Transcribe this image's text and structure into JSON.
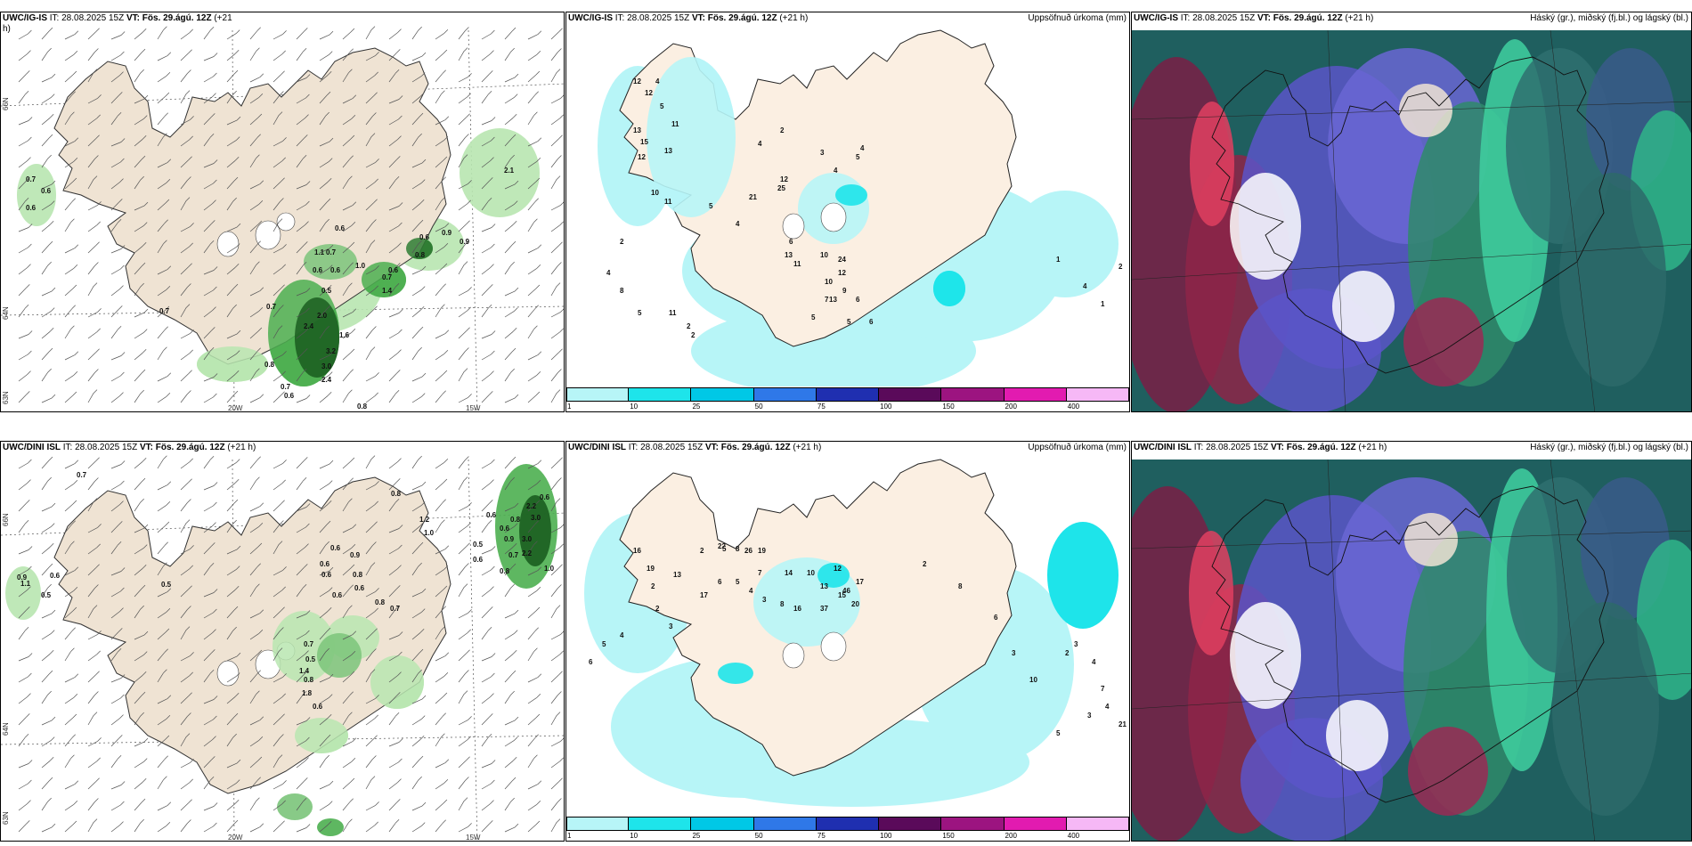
{
  "rows": [
    {
      "left": {
        "model": "UWC/IG-IS",
        "it_label": "IT: 28.08.2025 15Z",
        "vt_label": "VT: Fös. 29.ágú. 12Z",
        "lead": "(+21",
        "lead_cont": "h)"
      },
      "middle": {
        "model": "UWC/IG-IS",
        "it_label": "IT: 28.08.2025 15Z",
        "vt_label": "VT: Fös. 29.ágú. 12Z",
        "lead": "(+21 h)",
        "right_title": "Uppsöfnuð úrkoma (mm)"
      },
      "right": {
        "model": "UWC/IG-IS",
        "it_label": "IT: 28.08.2025 15Z",
        "vt_label": "VT: Fös. 29.ágú. 12Z",
        "lead": "(+21 h)",
        "right_title": "Háský (gr.), miðský (fj.bl.) og lágský (bl.)"
      }
    },
    {
      "left": {
        "model": "UWC/DINI ISL",
        "it_label": "IT: 28.08.2025 15Z",
        "vt_label": "VT: Fös. 29.ágú. 12Z",
        "lead": "(+21 h)",
        "lead_cont": ""
      },
      "middle": {
        "model": "UWC/DINI ISL",
        "it_label": "IT: 28.08.2025 15Z",
        "vt_label": "VT: Fös. 29.ágú. 12Z",
        "lead": "(+21 h)",
        "right_title": "Uppsöfnuð úrkoma (mm)"
      },
      "right": {
        "model": "UWC/DINI ISL",
        "it_label": "IT: 28.08.2025 15Z",
        "vt_label": "VT: Fös. 29.ágú. 12Z",
        "lead": "(+21 h)",
        "right_title": "Háský (gr.), miðský (fj.bl.) og lágský (bl.)"
      }
    }
  ],
  "axis_labels": {
    "lat_66": "66N",
    "lat_64": "64N",
    "lat_63": "63N",
    "lon_20": "20W",
    "lon_15": "15W"
  },
  "colorbar": {
    "labels": [
      "1",
      "10",
      "25",
      "50",
      "75",
      "100",
      "150",
      "200",
      "400"
    ],
    "colors": [
      "#b7f5f7",
      "#1ee4ea",
      "#00c8e6",
      "#2f78e8",
      "#1f2fb0",
      "#5a0a5a",
      "#9c1480",
      "#e21bb0",
      "#f6b8f6"
    ]
  },
  "precip_values_top": [
    "0.7",
    "0.6",
    "0.6",
    "0.6",
    "1.1",
    "0.7",
    "0.6",
    "0.6",
    "1.0",
    "0.5",
    "0.7",
    "0.7",
    "2.0",
    "2.4",
    "1.6",
    "3.2",
    "3.0",
    "2.4",
    "0.8",
    "0.7",
    "0.6",
    "0.9",
    "0.6",
    "0.9",
    "0.8",
    "0.6",
    "0.7",
    "1.4",
    "2.1",
    "0.8"
  ],
  "precip_values_bottom": [
    "0.7",
    "0.9",
    "1.1",
    "0.6",
    "0.5",
    "0.5",
    "0.8",
    "0.6",
    "0.6",
    "0.9",
    "0.6",
    "0.8",
    "0.6",
    "0.6",
    "0.8",
    "0.7",
    "1.2",
    "1.0",
    "0.7",
    "0.5",
    "0.6",
    "0.9",
    "0.6",
    "0.8",
    "2.2",
    "3.0",
    "3.0",
    "2.2",
    "1.0",
    "0.6",
    "0.8",
    "0.6",
    "0.7",
    "0.5",
    "1.4",
    "0.8",
    "1.8",
    "0.6"
  ],
  "accum_values_top": [
    "12",
    "12",
    "4",
    "5",
    "11",
    "13",
    "15",
    "12",
    "13",
    "10",
    "11",
    "21",
    "25",
    "2",
    "5",
    "4",
    "12",
    "6",
    "13",
    "11",
    "10",
    "24",
    "12",
    "10",
    "13",
    "5",
    "6",
    "9",
    "8",
    "4",
    "5",
    "11",
    "2",
    "2",
    "4",
    "2",
    "3",
    "4",
    "5",
    "4",
    "6",
    "5",
    "7",
    "2",
    "1",
    "4",
    "1"
  ],
  "accum_values_bottom": [
    "2",
    "5",
    "8",
    "13",
    "22",
    "26",
    "19",
    "7",
    "14",
    "10",
    "12",
    "13",
    "15",
    "20",
    "17",
    "46",
    "37",
    "16",
    "8",
    "3",
    "4",
    "5",
    "6",
    "17",
    "16",
    "19",
    "2",
    "2",
    "3",
    "4",
    "5",
    "6",
    "7",
    "4",
    "21",
    "3",
    "2",
    "3",
    "4",
    "5",
    "10",
    "3",
    "6",
    "8",
    "2"
  ]
}
